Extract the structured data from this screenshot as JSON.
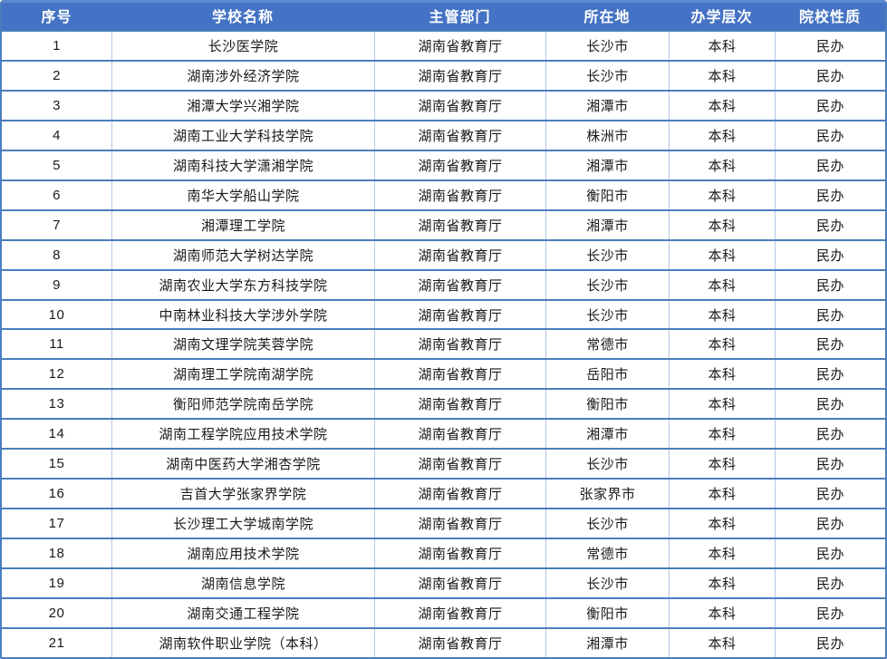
{
  "table": {
    "headers": [
      "序号",
      "学校名称",
      "主管部门",
      "所在地",
      "办学层次",
      "院校性质"
    ],
    "column_keys": [
      "index",
      "school",
      "department",
      "city",
      "level",
      "type"
    ],
    "rows": [
      [
        "1",
        "长沙医学院",
        "湖南省教育厅",
        "长沙市",
        "本科",
        "民办"
      ],
      [
        "2",
        "湖南涉外经济学院",
        "湖南省教育厅",
        "长沙市",
        "本科",
        "民办"
      ],
      [
        "3",
        "湘潭大学兴湘学院",
        "湖南省教育厅",
        "湘潭市",
        "本科",
        "民办"
      ],
      [
        "4",
        "湖南工业大学科技学院",
        "湖南省教育厅",
        "株洲市",
        "本科",
        "民办"
      ],
      [
        "5",
        "湖南科技大学潇湘学院",
        "湖南省教育厅",
        "湘潭市",
        "本科",
        "民办"
      ],
      [
        "6",
        "南华大学船山学院",
        "湖南省教育厅",
        "衡阳市",
        "本科",
        "民办"
      ],
      [
        "7",
        "湘潭理工学院",
        "湖南省教育厅",
        "湘潭市",
        "本科",
        "民办"
      ],
      [
        "8",
        "湖南师范大学树达学院",
        "湖南省教育厅",
        "长沙市",
        "本科",
        "民办"
      ],
      [
        "9",
        "湖南农业大学东方科技学院",
        "湖南省教育厅",
        "长沙市",
        "本科",
        "民办"
      ],
      [
        "10",
        "中南林业科技大学涉外学院",
        "湖南省教育厅",
        "长沙市",
        "本科",
        "民办"
      ],
      [
        "11",
        "湖南文理学院芙蓉学院",
        "湖南省教育厅",
        "常德市",
        "本科",
        "民办"
      ],
      [
        "12",
        "湖南理工学院南湖学院",
        "湖南省教育厅",
        "岳阳市",
        "本科",
        "民办"
      ],
      [
        "13",
        "衡阳师范学院南岳学院",
        "湖南省教育厅",
        "衡阳市",
        "本科",
        "民办"
      ],
      [
        "14",
        "湖南工程学院应用技术学院",
        "湖南省教育厅",
        "湘潭市",
        "本科",
        "民办"
      ],
      [
        "15",
        "湖南中医药大学湘杏学院",
        "湖南省教育厅",
        "长沙市",
        "本科",
        "民办"
      ],
      [
        "16",
        "吉首大学张家界学院",
        "湖南省教育厅",
        "张家界市",
        "本科",
        "民办"
      ],
      [
        "17",
        "长沙理工大学城南学院",
        "湖南省教育厅",
        "长沙市",
        "本科",
        "民办"
      ],
      [
        "18",
        "湖南应用技术学院",
        "湖南省教育厅",
        "常德市",
        "本科",
        "民办"
      ],
      [
        "19",
        "湖南信息学院",
        "湖南省教育厅",
        "长沙市",
        "本科",
        "民办"
      ],
      [
        "20",
        "湖南交通工程学院",
        "湖南省教育厅",
        "衡阳市",
        "本科",
        "民办"
      ],
      [
        "21",
        "湖南软件职业学院（本科）",
        "湖南省教育厅",
        "湘潭市",
        "本科",
        "民办"
      ]
    ]
  },
  "colors": {
    "header_bg": "#4472c4",
    "header_text": "#ffffff",
    "row_border": "#4a7ebd",
    "column_border": "#b4c7e7",
    "cell_text": "#1a1a1a",
    "background": "#ffffff"
  }
}
